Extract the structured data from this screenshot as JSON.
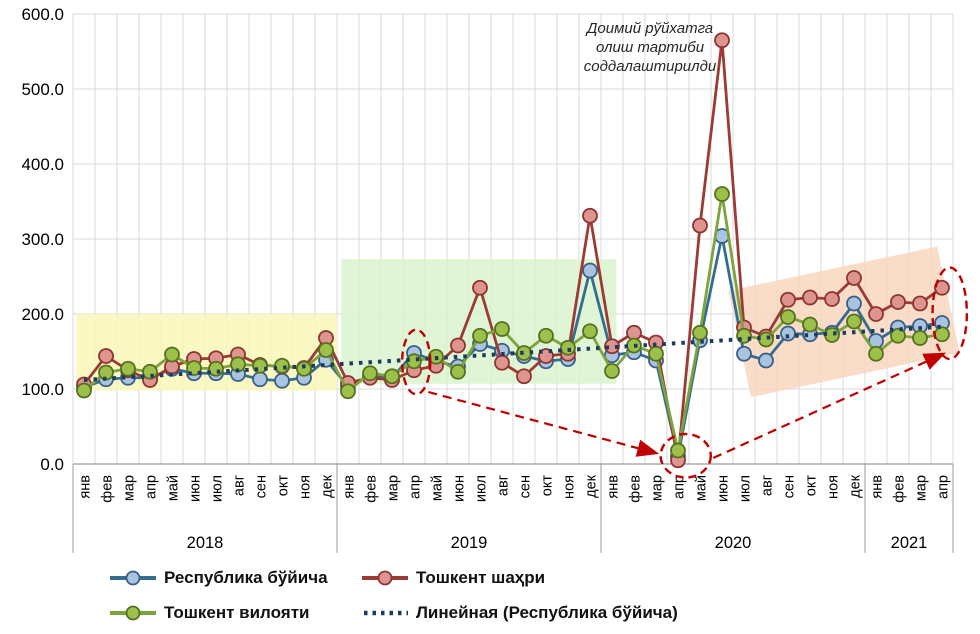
{
  "chart_data": {
    "type": "line",
    "title": "",
    "xlabel": "",
    "ylabel": "",
    "ylim": [
      0,
      600
    ],
    "grid": true,
    "legend_position": "bottom",
    "y_tick_labels_top_to_bottom": [
      "600.0",
      "500.0",
      "400.0",
      "300.0",
      "200.0",
      "100.0",
      "0.0"
    ],
    "month_labels": [
      "янв",
      "фев",
      "мар",
      "апр",
      "май",
      "июн",
      "июл",
      "авг",
      "сен",
      "окт",
      "ноя",
      "дек"
    ],
    "years": [
      {
        "label": "2018",
        "months": 12
      },
      {
        "label": "2019",
        "months": 12
      },
      {
        "label": "2020",
        "months": 12
      },
      {
        "label": "2021",
        "months": 4
      }
    ],
    "series": [
      {
        "name": "Республика бўйича",
        "line_color": "#336E91",
        "marker_fill": "#A9C4E0",
        "marker_stroke": "#3A5E88",
        "values": [
          102,
          113,
          115,
          115,
          127,
          121,
          121,
          120,
          113,
          111,
          115,
          139,
          103,
          118,
          115,
          148,
          137,
          130,
          160,
          151,
          144,
          137,
          140,
          258,
          145,
          149,
          138,
          10,
          165,
          304,
          147,
          138,
          174,
          173,
          175,
          214,
          164,
          182,
          184,
          188
        ]
      },
      {
        "name": "Тошкент шаҳри",
        "line_color": "#9C3A35",
        "marker_fill": "#DE9590",
        "marker_stroke": "#8E3330",
        "values": [
          106,
          144,
          125,
          112,
          130,
          140,
          141,
          146,
          132,
          130,
          128,
          168,
          108,
          115,
          112,
          125,
          131,
          158,
          235,
          135,
          117,
          144,
          147,
          331,
          157,
          175,
          162,
          5,
          318,
          565,
          182,
          170,
          219,
          222,
          220,
          248,
          200,
          216,
          214,
          235
        ]
      },
      {
        "name": "Тошкент вилояти",
        "line_color": "#7DA33C",
        "marker_fill": "#9DC04B",
        "marker_stroke": "#55711F",
        "values": [
          98,
          122,
          127,
          123,
          146,
          128,
          127,
          133,
          131,
          131,
          127,
          152,
          97,
          121,
          117,
          137,
          143,
          123,
          171,
          180,
          148,
          171,
          155,
          177,
          124,
          158,
          147,
          18,
          175,
          360,
          171,
          166,
          196,
          186,
          172,
          190,
          147,
          171,
          168,
          173
        ]
      }
    ],
    "trendline": {
      "name": "Линейная (Республика бўйича)",
      "color": "#1E3A5F",
      "start_value": 112,
      "end_value": 183
    },
    "annotation": {
      "lines": [
        "Доимий рўйхатга",
        "олиш тартиби",
        "соддалаштирилди"
      ],
      "color": "#262626"
    },
    "highlight_regions": [
      {
        "name": "region-2018",
        "color": "#FAF7B4",
        "opacity": 0.8,
        "month_from": 0.15,
        "month_to": 12,
        "value_min": 98,
        "value_max": 200,
        "rotate_deg": 0
      },
      {
        "name": "region-2019",
        "color": "#D7F2CA",
        "opacity": 0.8,
        "month_from": 12.2,
        "month_to": 24.7,
        "value_min": 107,
        "value_max": 273,
        "rotate_deg": 0
      },
      {
        "name": "region-2020-2021",
        "color": "#F9D5BA",
        "opacity": 0.8,
        "month_from": 30.2,
        "month_to": 39.9,
        "value_min": 117,
        "value_max": 262,
        "rotate_deg": -12
      }
    ],
    "callout_color": "#C00000",
    "callout_ellipses": [
      {
        "name": "circle-apr-2019",
        "month": 15.1,
        "value_center": 136,
        "rx_months": 0.64,
        "ry_values": 43
      },
      {
        "name": "circle-apr-2020",
        "month": 27.35,
        "value_center": 11,
        "rx_months": 1.14,
        "ry_values": 29
      },
      {
        "name": "circle-apr-2021",
        "month": 39.35,
        "value_center": 201,
        "rx_months": 0.78,
        "ry_values": 61
      }
    ],
    "callout_arrows": [
      {
        "name": "arrow-2019-to-2020",
        "month_from": 15.65,
        "value_from": 96,
        "month_to": 25.95,
        "value_to": 15
      },
      {
        "name": "arrow-2020-to-2021",
        "month_from": 28.6,
        "value_from": 8,
        "month_to": 39.0,
        "value_to": 146
      }
    ]
  },
  "legend": {
    "items": [
      {
        "label": "Республика бўйича"
      },
      {
        "label": "Тошкент шаҳри"
      },
      {
        "label": "Тошкент вилояти"
      },
      {
        "label": "Линейная (Республика бўйича)"
      }
    ]
  }
}
